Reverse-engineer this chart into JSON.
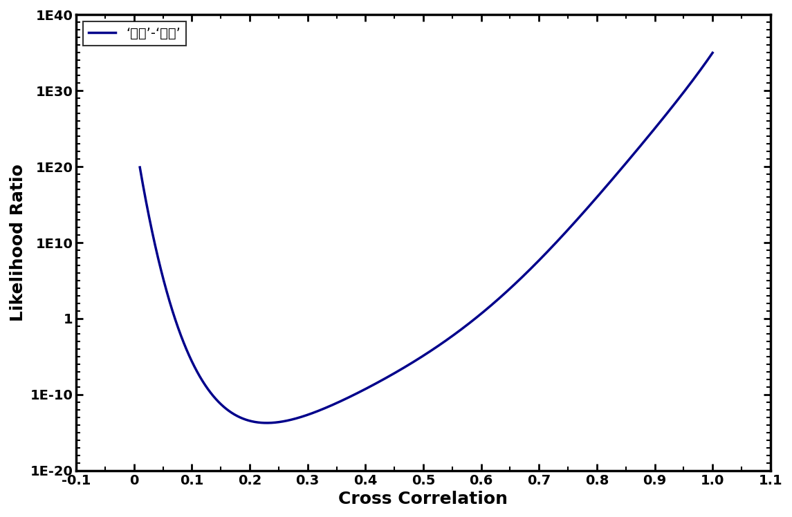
{
  "title": "",
  "xlabel": "Cross Correlation",
  "ylabel": "Likelihood Ratio",
  "legend_label": "‘가가’-‘가나’",
  "line_color": "#00008B",
  "line_width": 2.5,
  "xlim": [
    -0.1,
    1.1
  ],
  "ylim_log": [
    -20,
    40
  ],
  "xlabel_fontsize": 18,
  "ylabel_fontsize": 18,
  "tick_fontsize": 14,
  "legend_fontsize": 14,
  "axis_linewidth": 2.5,
  "x_ticks": [
    -0.1,
    0.0,
    0.1,
    0.2,
    0.3,
    0.4,
    0.5,
    0.6,
    0.7,
    0.8,
    0.9,
    1.0,
    1.1
  ],
  "x_tick_labels": [
    "-0.1",
    "0",
    "0.1",
    "0.2",
    "0.3",
    "0.4",
    "0.5",
    "0.6",
    "0.7",
    "0.8",
    "0.9",
    "1.0",
    "1.1"
  ],
  "y_tick_exponents": [
    -20,
    -10,
    0,
    10,
    20,
    30,
    40
  ],
  "x_pts": [
    0.01,
    0.05,
    0.1,
    0.17,
    0.25,
    0.35,
    0.5,
    0.65,
    0.8,
    0.9,
    1.0
  ],
  "y_log_pts": [
    20,
    5,
    -5,
    -13,
    -13.5,
    -11,
    -5,
    4,
    16,
    25,
    35
  ],
  "background_color": "#ffffff"
}
